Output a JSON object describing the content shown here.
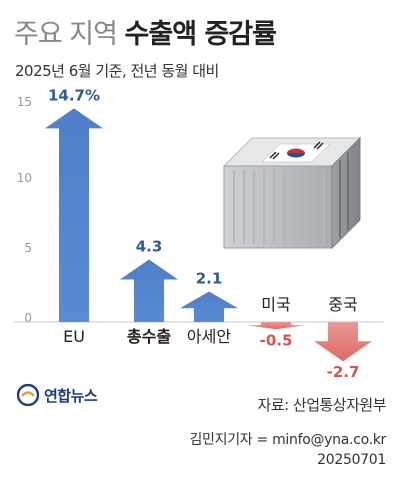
{
  "header": {
    "title_light": "주요 지역",
    "title_bold": "수출액 증감률",
    "subtitle": "2025년 6월 기준, 전년 동월 대비"
  },
  "chart_data": {
    "type": "bar",
    "categories": [
      "EU",
      "총수출",
      "아세안",
      "미국",
      "중국"
    ],
    "values": [
      14.7,
      4.3,
      2.1,
      -0.5,
      -2.7
    ],
    "value_labels": [
      "14.7%",
      "4.3",
      "2.1",
      "-0.5",
      "-2.7"
    ],
    "title": "수출액 증감률",
    "xlabel": "",
    "ylabel": "",
    "ylim": [
      0,
      15
    ],
    "yticks": [
      0,
      5,
      10,
      15
    ],
    "grid": false,
    "colors": {
      "positive": "#4a78c2",
      "negative": "#e07470"
    }
  },
  "illustration": {
    "icon": "shipping-container-korean-flag-icon"
  },
  "footer": {
    "logo_text": "연합뉴스",
    "source": "자료: 산업통상자원부",
    "credit": "김민지기자 = minfo@yna.co.kr",
    "date": "20250701"
  }
}
